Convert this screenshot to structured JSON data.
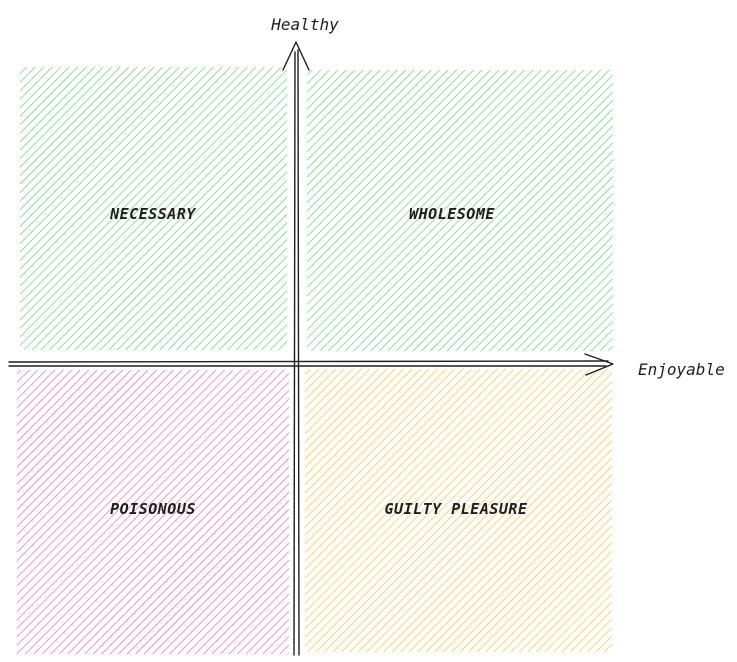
{
  "axes": {
    "y_label": "Healthy",
    "x_label": "Enjoyable"
  },
  "quadrants": [
    {
      "id": "top-left",
      "label": "NECESSARY",
      "color": "#40c057"
    },
    {
      "id": "top-right",
      "label": "WHOLESOME",
      "color": "#40c057"
    },
    {
      "id": "bottom-left",
      "label": "POISONOUS",
      "color": "#e64980"
    },
    {
      "id": "bottom-right",
      "label": "GUILTY PLEASURE",
      "color": "#fab005"
    }
  ]
}
